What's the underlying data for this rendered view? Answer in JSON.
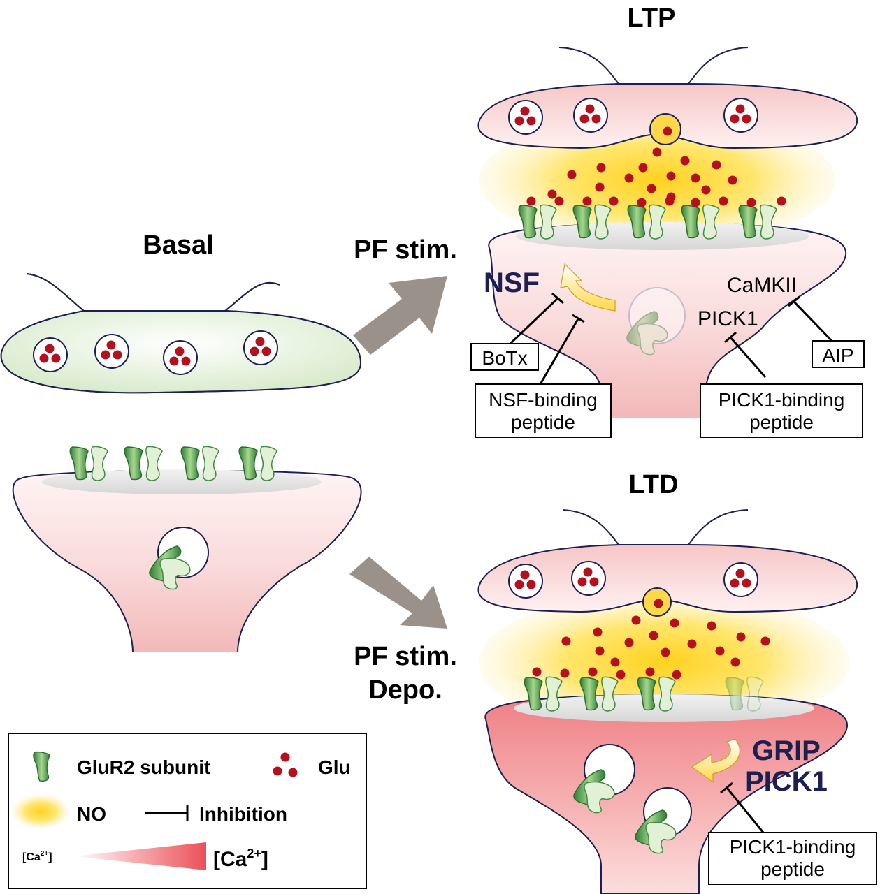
{
  "panels": {
    "basal": {
      "title": "Basal"
    },
    "ltp": {
      "title": "LTP"
    },
    "ltd": {
      "title": "LTD"
    }
  },
  "arrows": {
    "to_ltp": {
      "label": "PF stim."
    },
    "to_ltd": {
      "label_line1": "PF stim.",
      "label_line2": "Depo."
    }
  },
  "ltp_labels": {
    "nsf": "NSF",
    "camkii": "CaMKII",
    "pick1": "PICK1",
    "botx": "BoTx",
    "nsf_peptide_line1": "NSF-binding",
    "nsf_peptide_line2": "peptide",
    "pick1_peptide_line1": "PICK1-binding",
    "pick1_peptide_line2": "peptide",
    "aip": "AIP"
  },
  "ltd_labels": {
    "grip": "GRIP",
    "pick1": "PICK1",
    "pick1_peptide_line1": "PICK1-binding",
    "pick1_peptide_line2": "peptide"
  },
  "legend": {
    "glur2": "GluR2 subunit",
    "glu": "Glu",
    "no": "NO",
    "inhibition": "Inhibition",
    "ca_low": "[Ca",
    "ca_low_sup": "2+",
    "ca_low_close": "]",
    "ca_high": "[Ca",
    "ca_high_sup": "2+",
    "ca_high_close": "]"
  },
  "colors": {
    "outline": "#1c1f52",
    "glu_red": "#b5101e",
    "receptor_green": "#3f9b45",
    "arrow_gray": "#9a918b",
    "no_yellow": "#ffd21f",
    "ca_red": "#ec5a62"
  }
}
